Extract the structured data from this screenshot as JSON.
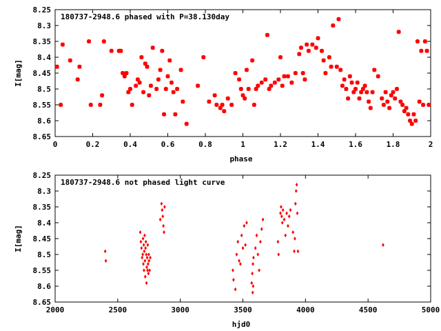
{
  "chart_data": [
    {
      "type": "scatter",
      "title": "180737-2948.6 phased with P=38.130day",
      "xlabel": "phase",
      "ylabel": "I[mag]",
      "xlim": [
        0,
        2
      ],
      "ylim": [
        8.65,
        8.25
      ],
      "y_inverted": true,
      "xticks": [
        "0",
        "0.2",
        "0.4",
        "0.6",
        "0.8",
        "1",
        "1.2",
        "1.4",
        "1.6",
        "1.8",
        "2"
      ],
      "xtick_values": [
        0,
        0.2,
        0.4,
        0.6,
        0.8,
        1.0,
        1.2,
        1.4,
        1.6,
        1.8,
        2.0
      ],
      "yticks": [
        "8.25",
        "8.3",
        "8.35",
        "8.4",
        "8.45",
        "8.5",
        "8.55",
        "8.6",
        "8.65"
      ],
      "ytick_values": [
        8.25,
        8.3,
        8.35,
        8.4,
        8.45,
        8.5,
        8.55,
        8.6,
        8.65
      ],
      "grid": false,
      "marker_color": "#ff0000",
      "points": [
        [
          0.01,
          8.43
        ],
        [
          0.03,
          8.55
        ],
        [
          0.04,
          8.36
        ],
        [
          0.08,
          8.41
        ],
        [
          0.12,
          8.47
        ],
        [
          0.13,
          8.43
        ],
        [
          0.18,
          8.35
        ],
        [
          0.19,
          8.55
        ],
        [
          0.24,
          8.55
        ],
        [
          0.25,
          8.52
        ],
        [
          0.26,
          8.35
        ],
        [
          0.3,
          8.38
        ],
        [
          0.34,
          8.38
        ],
        [
          0.35,
          8.38
        ],
        [
          0.36,
          8.45
        ],
        [
          0.37,
          8.46
        ],
        [
          0.38,
          8.45
        ],
        [
          0.39,
          8.51
        ],
        [
          0.4,
          8.5
        ],
        [
          0.41,
          8.55
        ],
        [
          0.43,
          8.49
        ],
        [
          0.44,
          8.47
        ],
        [
          0.45,
          8.48
        ],
        [
          0.46,
          8.4
        ],
        [
          0.47,
          8.51
        ],
        [
          0.48,
          8.42
        ],
        [
          0.49,
          8.43
        ],
        [
          0.5,
          8.52
        ],
        [
          0.51,
          8.49
        ],
        [
          0.52,
          8.37
        ],
        [
          0.54,
          8.5
        ],
        [
          0.55,
          8.47
        ],
        [
          0.56,
          8.44
        ],
        [
          0.57,
          8.38
        ],
        [
          0.58,
          8.58
        ],
        [
          0.59,
          8.5
        ],
        [
          0.6,
          8.46
        ],
        [
          0.61,
          8.41
        ],
        [
          0.62,
          8.48
        ],
        [
          0.63,
          8.51
        ],
        [
          0.64,
          8.58
        ],
        [
          0.65,
          8.5
        ],
        [
          0.67,
          8.44
        ],
        [
          0.68,
          8.54
        ],
        [
          0.7,
          8.61
        ],
        [
          0.76,
          8.49
        ],
        [
          0.79,
          8.4
        ],
        [
          0.82,
          8.54
        ],
        [
          0.85,
          8.52
        ],
        [
          0.86,
          8.55
        ],
        [
          0.88,
          8.56
        ],
        [
          0.89,
          8.55
        ],
        [
          0.9,
          8.57
        ],
        [
          0.92,
          8.53
        ],
        [
          0.94,
          8.55
        ],
        [
          0.96,
          8.45
        ],
        [
          0.98,
          8.47
        ],
        [
          0.99,
          8.5
        ],
        [
          1.0,
          8.52
        ],
        [
          1.01,
          8.53
        ],
        [
          1.02,
          8.44
        ],
        [
          1.03,
          8.5
        ],
        [
          1.05,
          8.41
        ],
        [
          1.06,
          8.55
        ],
        [
          1.07,
          8.5
        ],
        [
          1.08,
          8.49
        ],
        [
          1.1,
          8.48
        ],
        [
          1.12,
          8.47
        ],
        [
          1.13,
          8.33
        ],
        [
          1.14,
          8.5
        ],
        [
          1.15,
          8.49
        ],
        [
          1.17,
          8.48
        ],
        [
          1.19,
          8.47
        ],
        [
          1.2,
          8.4
        ],
        [
          1.21,
          8.49
        ],
        [
          1.22,
          8.46
        ],
        [
          1.24,
          8.46
        ],
        [
          1.26,
          8.48
        ],
        [
          1.28,
          8.45
        ],
        [
          1.3,
          8.39
        ],
        [
          1.31,
          8.37
        ],
        [
          1.32,
          8.45
        ],
        [
          1.33,
          8.47
        ],
        [
          1.34,
          8.36
        ],
        [
          1.35,
          8.38
        ],
        [
          1.37,
          8.36
        ],
        [
          1.39,
          8.37
        ],
        [
          1.4,
          8.34
        ],
        [
          1.42,
          8.38
        ],
        [
          1.43,
          8.41
        ],
        [
          1.44,
          8.45
        ],
        [
          1.46,
          8.4
        ],
        [
          1.47,
          8.43
        ],
        [
          1.48,
          8.3
        ],
        [
          1.5,
          8.43
        ],
        [
          1.51,
          8.28
        ],
        [
          1.52,
          8.44
        ],
        [
          1.53,
          8.49
        ],
        [
          1.54,
          8.47
        ],
        [
          1.55,
          8.5
        ],
        [
          1.56,
          8.53
        ],
        [
          1.57,
          8.46
        ],
        [
          1.58,
          8.48
        ],
        [
          1.59,
          8.51
        ],
        [
          1.6,
          8.5
        ],
        [
          1.61,
          8.48
        ],
        [
          1.62,
          8.53
        ],
        [
          1.63,
          8.51
        ],
        [
          1.64,
          8.5
        ],
        [
          1.65,
          8.49
        ],
        [
          1.66,
          8.51
        ],
        [
          1.67,
          8.54
        ],
        [
          1.68,
          8.56
        ],
        [
          1.69,
          8.51
        ],
        [
          1.7,
          8.44
        ],
        [
          1.72,
          8.46
        ],
        [
          1.74,
          8.53
        ],
        [
          1.75,
          8.55
        ],
        [
          1.76,
          8.51
        ],
        [
          1.77,
          8.54
        ],
        [
          1.78,
          8.56
        ],
        [
          1.79,
          8.52
        ],
        [
          1.8,
          8.51
        ],
        [
          1.81,
          8.53
        ],
        [
          1.82,
          8.5
        ],
        [
          1.83,
          8.32
        ],
        [
          1.84,
          8.54
        ],
        [
          1.85,
          8.55
        ],
        [
          1.86,
          8.57
        ],
        [
          1.87,
          8.56
        ],
        [
          1.88,
          8.58
        ],
        [
          1.89,
          8.6
        ],
        [
          1.9,
          8.61
        ],
        [
          1.91,
          8.58
        ],
        [
          1.92,
          8.6
        ],
        [
          1.93,
          8.35
        ],
        [
          1.94,
          8.54
        ],
        [
          1.95,
          8.38
        ],
        [
          1.96,
          8.55
        ],
        [
          1.97,
          8.35
        ],
        [
          1.98,
          8.38
        ],
        [
          1.99,
          8.55
        ]
      ]
    },
    {
      "type": "scatter",
      "title": "180737-2948.6 not phased light curve",
      "xlabel": "hjd0",
      "ylabel": "I[mag]",
      "xlim": [
        2000,
        5000
      ],
      "ylim": [
        8.65,
        8.25
      ],
      "y_inverted": true,
      "xticks": [
        "2000",
        "2500",
        "3000",
        "3500",
        "4000",
        "4500",
        "5000"
      ],
      "xtick_values": [
        2000,
        2500,
        3000,
        3500,
        4000,
        4500,
        5000
      ],
      "yticks": [
        "8.25",
        "8.3",
        "8.35",
        "8.4",
        "8.45",
        "8.5",
        "8.55",
        "8.6",
        "8.65"
      ],
      "ytick_values": [
        8.25,
        8.3,
        8.35,
        8.4,
        8.45,
        8.5,
        8.55,
        8.6,
        8.65
      ],
      "grid": false,
      "marker_color": "#ff0000",
      "points": [
        [
          2400,
          8.49
        ],
        [
          2405,
          8.52
        ],
        [
          2680,
          8.43
        ],
        [
          2685,
          8.46
        ],
        [
          2690,
          8.48
        ],
        [
          2695,
          8.51
        ],
        [
          2700,
          8.5
        ],
        [
          2702,
          8.45
        ],
        [
          2705,
          8.53
        ],
        [
          2708,
          8.47
        ],
        [
          2710,
          8.55
        ],
        [
          2712,
          8.49
        ],
        [
          2715,
          8.44
        ],
        [
          2718,
          8.52
        ],
        [
          2720,
          8.57
        ],
        [
          2722,
          8.48
        ],
        [
          2725,
          8.46
        ],
        [
          2728,
          8.5
        ],
        [
          2730,
          8.59
        ],
        [
          2732,
          8.54
        ],
        [
          2735,
          8.51
        ],
        [
          2738,
          8.55
        ],
        [
          2740,
          8.47
        ],
        [
          2742,
          8.53
        ],
        [
          2745,
          8.56
        ],
        [
          2748,
          8.5
        ],
        [
          2750,
          8.52
        ],
        [
          2755,
          8.55
        ],
        [
          2760,
          8.51
        ],
        [
          2840,
          8.39
        ],
        [
          2850,
          8.34
        ],
        [
          2855,
          8.36
        ],
        [
          2860,
          8.38
        ],
        [
          2865,
          8.41
        ],
        [
          2870,
          8.43
        ],
        [
          2875,
          8.35
        ],
        [
          3420,
          8.55
        ],
        [
          3425,
          8.58
        ],
        [
          3440,
          8.61
        ],
        [
          3450,
          8.5
        ],
        [
          3460,
          8.46
        ],
        [
          3470,
          8.52
        ],
        [
          3480,
          8.53
        ],
        [
          3490,
          8.44
        ],
        [
          3500,
          8.48
        ],
        [
          3510,
          8.41
        ],
        [
          3520,
          8.47
        ],
        [
          3530,
          8.4
        ],
        [
          3570,
          8.59
        ],
        [
          3575,
          8.56
        ],
        [
          3578,
          8.62
        ],
        [
          3580,
          8.53
        ],
        [
          3582,
          8.6
        ],
        [
          3585,
          8.51
        ],
        [
          3600,
          8.48
        ],
        [
          3610,
          8.44
        ],
        [
          3620,
          8.5
        ],
        [
          3630,
          8.55
        ],
        [
          3640,
          8.46
        ],
        [
          3650,
          8.42
        ],
        [
          3660,
          8.39
        ],
        [
          3780,
          8.46
        ],
        [
          3785,
          8.5
        ],
        [
          3800,
          8.37
        ],
        [
          3805,
          8.35
        ],
        [
          3810,
          8.38
        ],
        [
          3815,
          8.4
        ],
        [
          3820,
          8.36
        ],
        [
          3830,
          8.39
        ],
        [
          3840,
          8.44
        ],
        [
          3850,
          8.37
        ],
        [
          3860,
          8.41
        ],
        [
          3870,
          8.38
        ],
        [
          3880,
          8.36
        ],
        [
          3900,
          8.43
        ],
        [
          3910,
          8.49
        ],
        [
          3915,
          8.45
        ],
        [
          3920,
          8.34
        ],
        [
          3925,
          8.3
        ],
        [
          3930,
          8.28
        ],
        [
          3935,
          8.37
        ],
        [
          3940,
          8.49
        ],
        [
          4620,
          8.47
        ]
      ]
    }
  ]
}
